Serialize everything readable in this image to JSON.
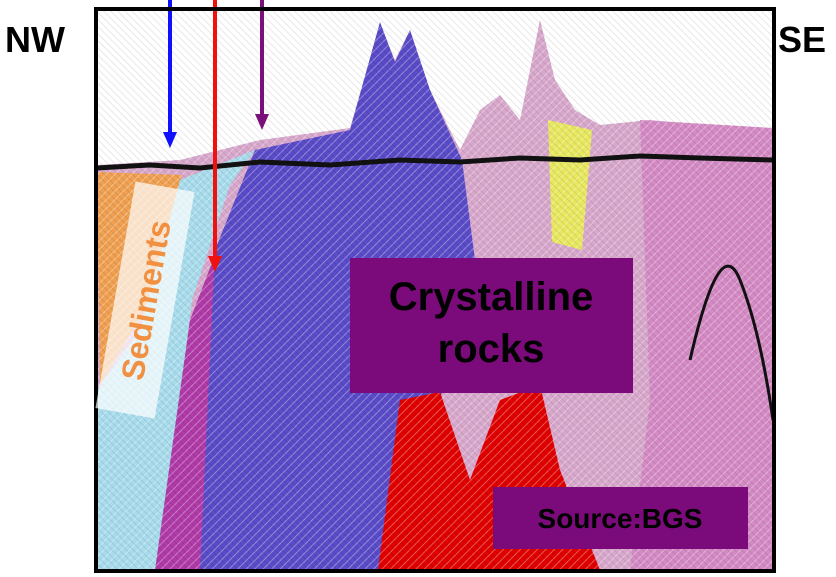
{
  "labels": {
    "left": "NW",
    "right": "SE",
    "sediments": "Sediments",
    "crystalline": "Crystalline rocks",
    "source": "Source:BGS"
  }
}
